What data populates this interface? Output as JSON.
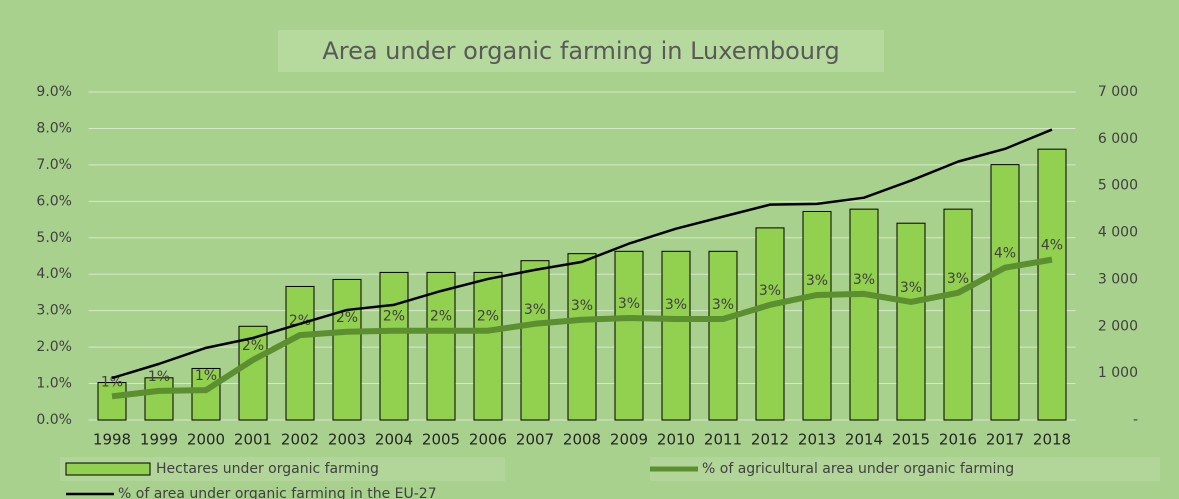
{
  "chart_data": {
    "type": "bar",
    "title": "Area under organic farming in Luxembourg",
    "categories": [
      "1998",
      "1999",
      "2000",
      "2001",
      "2002",
      "2003",
      "2004",
      "2005",
      "2006",
      "2007",
      "2008",
      "2009",
      "2010",
      "2011",
      "2012",
      "2013",
      "2014",
      "2015",
      "2016",
      "2017",
      "2018"
    ],
    "series": [
      {
        "name": "Hectares under organic farming",
        "type": "bar",
        "axis": "y2",
        "color": "#92d050",
        "values": [
          800,
          900,
          1100,
          2000,
          2850,
          3000,
          3150,
          3150,
          3150,
          3400,
          3550,
          3600,
          3600,
          3600,
          4100,
          4450,
          4500,
          4200,
          4500,
          5450,
          5780
        ]
      },
      {
        "name": "% of agricultural area under organic farming",
        "type": "line",
        "color": "#5b8f2f",
        "values": [
          0.65,
          0.8,
          0.82,
          1.65,
          2.33,
          2.42,
          2.45,
          2.45,
          2.45,
          2.64,
          2.75,
          2.8,
          2.77,
          2.77,
          3.16,
          3.43,
          3.46,
          3.24,
          3.49,
          4.18,
          4.4
        ],
        "value_labels": [
          "1%",
          "1%",
          "1%",
          "2%",
          "2%",
          "2%",
          "2%",
          "2%",
          "2%",
          "3%",
          "3%",
          "3%",
          "3%",
          "3%",
          "3%",
          "3%",
          "3%",
          "3%",
          "3%",
          "4%",
          "4%"
        ]
      },
      {
        "name": "% of area under organic farming in the EU-27",
        "type": "line",
        "color": "#000000",
        "values": [
          1.15,
          1.54,
          1.98,
          2.25,
          2.64,
          3.02,
          3.16,
          3.54,
          3.87,
          4.12,
          4.34,
          4.84,
          5.25,
          5.58,
          5.91,
          5.93,
          6.1,
          6.57,
          7.09,
          7.44,
          7.97
        ]
      }
    ],
    "ylim": [
      0,
      9
    ],
    "yticks": [
      {
        "value": 0,
        "label": "0.0%"
      },
      {
        "value": 1,
        "label": "1.0%"
      },
      {
        "value": 2,
        "label": "2.0%"
      },
      {
        "value": 3,
        "label": "3.0%"
      },
      {
        "value": 4,
        "label": "4.0%"
      },
      {
        "value": 5,
        "label": "5.0%"
      },
      {
        "value": 6,
        "label": "6.0%"
      },
      {
        "value": 7,
        "label": "7.0%"
      },
      {
        "value": 8,
        "label": "8.0%"
      },
      {
        "value": 9,
        "label": "9.0%"
      }
    ],
    "y2lim": [
      0,
      7000
    ],
    "y2ticks": [
      {
        "value": 0,
        "label": "-"
      },
      {
        "value": 1000,
        "label": "1 000"
      },
      {
        "value": 2000,
        "label": "2 000"
      },
      {
        "value": 3000,
        "label": "3 000"
      },
      {
        "value": 4000,
        "label": "4 000"
      },
      {
        "value": 5000,
        "label": "5 000"
      },
      {
        "value": 6000,
        "label": "6 000"
      },
      {
        "value": 7000,
        "label": "7 000"
      }
    ],
    "grid": true
  }
}
